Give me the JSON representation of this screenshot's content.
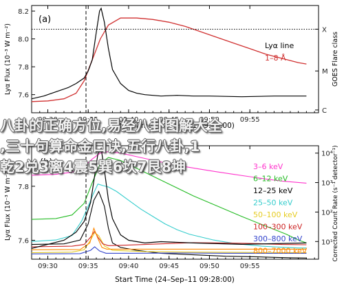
{
  "chart_data": [
    {
      "type": "line",
      "panel": "(a)",
      "ylabel": "Lyα Flux (10⁻³ W m⁻²)",
      "xlabel": "Start Time (24–Sep–11 09:28:00)",
      "x_ticks": [
        "09:30",
        "09:35",
        "09:40",
        "09:45",
        "09:50",
        "09:55"
      ],
      "ylim": [
        7.47,
        8.24
      ],
      "y_ticks": [
        7.6,
        7.8,
        8.0,
        8.2
      ],
      "right_axis_title": "GOES Flare class",
      "right_axis_labels": [
        "X",
        "M",
        "C"
      ],
      "legend": [
        "Lyα line",
        "1–8 Å"
      ],
      "series": [
        {
          "name": "Lyα line",
          "color": "#000000",
          "x": [
            0.0,
            1.5,
            3.0,
            4.5,
            5.5,
            6.5,
            7.0,
            7.5,
            8.0,
            8.4,
            8.6,
            9.0,
            9.5,
            10.0,
            11.0,
            12.0,
            13.0,
            14.0,
            16.0,
            18.0,
            20.0,
            22.0,
            26.0,
            30.0,
            34.0
          ],
          "y": [
            7.57,
            7.59,
            7.62,
            7.65,
            7.68,
            7.72,
            7.77,
            7.85,
            8.05,
            8.2,
            8.22,
            8.12,
            7.93,
            7.78,
            7.68,
            7.63,
            7.61,
            7.6,
            7.59,
            7.595,
            7.59,
            7.59,
            7.585,
            7.59,
            7.59
          ]
        }
      ],
      "series_right": [
        {
          "name": "1–8 Å",
          "color": "#d03030",
          "x": [
            0.0,
            2.0,
            4.0,
            5.5,
            6.5,
            7.5,
            8.5,
            9.5,
            11.0,
            13.0,
            15.0,
            17.0,
            19.0,
            21.0,
            23.0,
            25.0,
            27.0,
            29.0,
            31.0,
            33.0,
            34.0
          ],
          "y": [
            7.55,
            7.555,
            7.57,
            7.61,
            7.7,
            7.85,
            8.0,
            8.1,
            8.15,
            8.15,
            8.14,
            8.12,
            8.09,
            8.05,
            8.01,
            7.97,
            7.93,
            7.89,
            7.86,
            7.83,
            7.82
          ]
        }
      ],
      "reference_line": {
        "style": "dotted",
        "y": 8.07
      }
    },
    {
      "type": "line",
      "panel": "(b)",
      "ylabel": "Lyα Flux (10⁻³ W m⁻²)",
      "xlabel": "Start Time (24–Sep–11 09:28:00)",
      "x_ticks": [
        "09:30",
        "09:35",
        "09:40",
        "09:45",
        "09:50",
        "09:55"
      ],
      "ylim": [
        7.53,
        7.95
      ],
      "y_ticks": [
        7.6,
        7.8
      ],
      "y2_label": "Corrected Count Rate (s⁻¹ detector⁻¹)",
      "y2_ticks": [
        "10¹",
        "10²",
        "10³",
        "10⁴"
      ],
      "series": [
        {
          "name": "Lyα",
          "color": "#000000",
          "x": [
            0.0,
            2.0,
            4.0,
            5.5,
            6.5,
            7.3,
            7.8,
            8.2,
            8.6,
            9.0,
            9.5,
            10.0,
            11.0,
            12.0,
            14.0,
            16.0,
            20.0,
            26.0,
            34.0
          ],
          "y": [
            7.57,
            7.585,
            7.6,
            7.63,
            7.67,
            7.74,
            7.84,
            7.92,
            7.94,
            7.86,
            7.75,
            7.68,
            7.62,
            7.6,
            7.59,
            7.595,
            7.59,
            7.585,
            7.59
          ]
        }
      ],
      "series_right": [
        {
          "name": "3–6 keV",
          "color": "#ff33cc",
          "x": [
            0.0,
            3.0,
            5.0,
            6.5,
            7.5,
            8.5,
            9.5,
            11.0,
            13.0,
            15.0,
            17.0,
            19.0,
            21.0,
            23.0,
            25.0,
            27.0,
            29.0,
            31.0,
            34.0
          ],
          "y": [
            3.25,
            3.28,
            3.35,
            3.55,
            3.8,
            4.0,
            4.05,
            4.0,
            3.88,
            3.76,
            3.64,
            3.54,
            3.45,
            3.36,
            3.28,
            3.2,
            3.12,
            3.05,
            2.98
          ]
        },
        {
          "name": "6–12 keV",
          "color": "#22bb22",
          "x": [
            0.0,
            3.0,
            5.0,
            6.5,
            7.5,
            8.5,
            9.5,
            11.0,
            14.0,
            17.0,
            20.0,
            23.0,
            26.0,
            29.0,
            31.5,
            33.0,
            34.0
          ],
          "y": [
            1.75,
            1.78,
            1.9,
            2.3,
            3.0,
            3.65,
            3.85,
            3.75,
            3.35,
            2.95,
            2.55,
            2.2,
            1.85,
            1.52,
            1.25,
            1.05,
            0.95
          ]
        },
        {
          "name": "12–25 keV",
          "color": "#000000",
          "x": [
            0.0,
            4.0,
            6.0,
            7.0,
            7.7,
            8.3,
            9.0,
            9.5,
            10.0,
            11.0,
            13.0,
            16.0,
            20.0,
            24.0,
            28.0,
            32.0,
            34.0
          ],
          "y": [
            0.9,
            0.92,
            1.05,
            1.6,
            2.4,
            2.7,
            2.2,
            1.45,
            0.95,
            0.8,
            0.7,
            0.6,
            0.55,
            0.5,
            0.48,
            0.45,
            0.44
          ]
        },
        {
          "name": "25–50 keV",
          "color": "#33cccc",
          "x": [
            0.0,
            3.0,
            5.0,
            6.2,
            7.0,
            7.6,
            8.2,
            8.8,
            9.5,
            10.5,
            12.0,
            13.5,
            15.0,
            16.5,
            18.0,
            19.5,
            21.0,
            22.5,
            24.0,
            25.5,
            27.0,
            28.5,
            30.0,
            31.5,
            33.0,
            34.0
          ],
          "y": [
            1.0,
            1.05,
            1.2,
            1.7,
            2.2,
            2.6,
            2.95,
            2.9,
            2.85,
            2.7,
            2.4,
            2.1,
            1.85,
            1.6,
            1.4,
            1.25,
            1.15,
            1.05,
            0.98,
            0.92,
            0.88,
            0.84,
            0.82,
            0.8,
            0.78,
            0.78
          ]
        },
        {
          "name": "50–100 keV",
          "color": "#e6cc22",
          "x": [
            0.0,
            5.0,
            6.5,
            7.3,
            7.8,
            8.3,
            9.0,
            10.0,
            14.0,
            20.0,
            26.0,
            34.0
          ],
          "y": [
            0.62,
            0.64,
            0.72,
            1.05,
            1.3,
            1.2,
            0.85,
            0.7,
            0.66,
            0.64,
            0.63,
            0.62
          ]
        },
        {
          "name": "100–300 keV",
          "color": "#cc2222",
          "x": [
            0.0,
            5.0,
            6.5,
            7.3,
            7.8,
            8.2,
            8.8,
            9.5,
            12.0,
            16.0,
            20.0,
            24.0,
            28.0,
            31.0,
            34.0
          ],
          "y": [
            0.82,
            0.84,
            0.9,
            1.15,
            1.35,
            1.15,
            0.92,
            0.86,
            0.88,
            0.92,
            0.96,
            0.95,
            0.93,
            0.9,
            0.89
          ]
        },
        {
          "name": "300–800 keV",
          "color": "#3344cc",
          "x": [
            0.0,
            6.0,
            7.3,
            7.8,
            8.4,
            9.2,
            12.0,
            18.0,
            24.0,
            30.0,
            34.0
          ],
          "y": [
            0.58,
            0.59,
            0.7,
            0.82,
            0.68,
            0.6,
            0.6,
            0.61,
            0.6,
            0.6,
            0.6
          ]
        },
        {
          "name": "800–7000 keV",
          "color": "#ff8800",
          "x": [
            0.0,
            6.0,
            7.2,
            7.7,
            8.2,
            8.7,
            9.3,
            12.0,
            18.0,
            24.0,
            30.0,
            34.0
          ],
          "y": [
            0.72,
            0.73,
            0.95,
            1.45,
            1.1,
            0.8,
            0.74,
            0.74,
            0.74,
            0.74,
            0.74,
            0.74
          ]
        }
      ],
      "legend": [
        "3–6 keV",
        "6–12 keV",
        "12–25 keV",
        "25–50 keV",
        "50–100 keV",
        "100–300 keV",
        "300–800 keV",
        "800–7000 keV"
      ]
    }
  ],
  "overlay_text": [
    "八卦的正确方位,易经八卦图解大全",
    ",三十句算命金口诀,五行八卦,1",
    "乾2兑3离4震5巽6坎7艮8坤"
  ],
  "colors": {
    "frame": "#000000",
    "tick_text": "#222222",
    "overlay": "#f2f2f2"
  }
}
